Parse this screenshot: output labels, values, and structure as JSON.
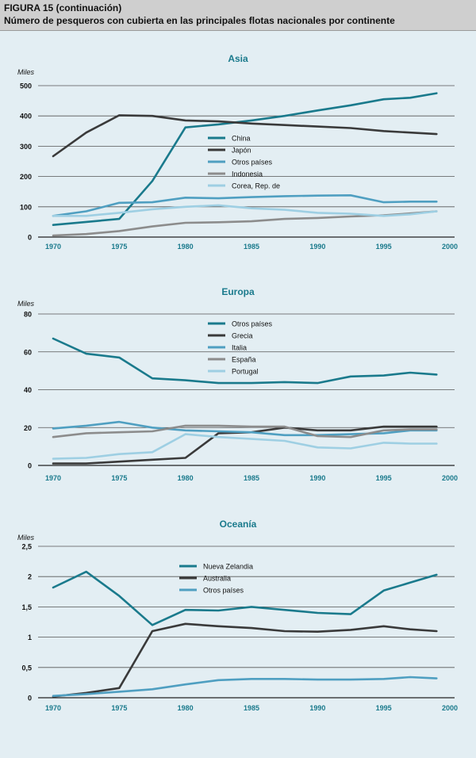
{
  "header": {
    "figure": "FIGURA 15 (continuación)",
    "title": "Número de pesqueros con cubierta en las principales flotas nacionales por continente"
  },
  "colors": {
    "teal": "#1a7a8c",
    "dark": "#3a3a3a",
    "blue": "#4f9fc1",
    "gray": "#8c8c8c",
    "light": "#9ecfe3",
    "axis": "#1a7a8c",
    "background": "#e3eef3"
  },
  "chart_data": [
    {
      "type": "line",
      "title": "Asia",
      "ylabel": "Miles",
      "ylim": [
        0,
        500
      ],
      "yticks": [
        0,
        100,
        200,
        300,
        400,
        500
      ],
      "ytick_labels": [
        "0",
        "100",
        "200",
        "300",
        "400",
        "500"
      ],
      "xlim": [
        1970,
        2000
      ],
      "xticks": [
        1970,
        1975,
        1980,
        1985,
        1990,
        1995,
        2000
      ],
      "xtick_labels": [
        "1970",
        "1975",
        "1980",
        "1985",
        "1990",
        "1995",
        "2000"
      ],
      "series": [
        {
          "name": "China",
          "color": "teal",
          "points": [
            [
              1970,
              40
            ],
            [
              1972.5,
              50
            ],
            [
              1975,
              60
            ],
            [
              1977.5,
              185
            ],
            [
              1980,
              362
            ],
            [
              1982.5,
              372
            ],
            [
              1985,
              385
            ],
            [
              1987.5,
              400
            ],
            [
              1990,
              418
            ],
            [
              1992.5,
              435
            ],
            [
              1995,
              455
            ],
            [
              1997,
              460
            ],
            [
              1999,
              475
            ]
          ]
        },
        {
          "name": "Japón",
          "color": "dark",
          "points": [
            [
              1970,
              267
            ],
            [
              1972.5,
              345
            ],
            [
              1975,
              402
            ],
            [
              1977.5,
              400
            ],
            [
              1980,
              385
            ],
            [
              1982.5,
              382
            ],
            [
              1985,
              375
            ],
            [
              1987.5,
              370
            ],
            [
              1990,
              365
            ],
            [
              1992.5,
              360
            ],
            [
              1995,
              350
            ],
            [
              1997,
              345
            ],
            [
              1999,
              340
            ]
          ]
        },
        {
          "name": "Otros países",
          "color": "blue",
          "points": [
            [
              1970,
              70
            ],
            [
              1972.5,
              85
            ],
            [
              1975,
              113
            ],
            [
              1977.5,
              115
            ],
            [
              1980,
              130
            ],
            [
              1982.5,
              128
            ],
            [
              1985,
              132
            ],
            [
              1987.5,
              135
            ],
            [
              1990,
              137
            ],
            [
              1992.5,
              138
            ],
            [
              1995,
              115
            ],
            [
              1997,
              117
            ],
            [
              1999,
              117
            ]
          ]
        },
        {
          "name": "Indonesia",
          "color": "gray",
          "points": [
            [
              1970,
              5
            ],
            [
              1972.5,
              10
            ],
            [
              1975,
              20
            ],
            [
              1977.5,
              35
            ],
            [
              1980,
              47
            ],
            [
              1982.5,
              49
            ],
            [
              1985,
              52
            ],
            [
              1987.5,
              60
            ],
            [
              1990,
              63
            ],
            [
              1992.5,
              68
            ],
            [
              1995,
              72
            ],
            [
              1997,
              78
            ],
            [
              1999,
              85
            ]
          ]
        },
        {
          "name": "Corea, Rep. de",
          "color": "light",
          "points": [
            [
              1970,
              70
            ],
            [
              1972.5,
              70
            ],
            [
              1975,
              80
            ],
            [
              1977.5,
              92
            ],
            [
              1980,
              100
            ],
            [
              1982.5,
              105
            ],
            [
              1985,
              95
            ],
            [
              1987.5,
              90
            ],
            [
              1990,
              80
            ],
            [
              1992.5,
              77
            ],
            [
              1995,
              70
            ],
            [
              1997,
              75
            ],
            [
              1999,
              85
            ]
          ]
        }
      ]
    },
    {
      "type": "line",
      "title": "Europa",
      "ylabel": "Miles",
      "ylim": [
        0,
        80
      ],
      "yticks": [
        0,
        20,
        40,
        60,
        80
      ],
      "ytick_labels": [
        "0",
        "20",
        "40",
        "60",
        "80"
      ],
      "xlim": [
        1970,
        2000
      ],
      "xticks": [
        1970,
        1975,
        1980,
        1985,
        1990,
        1995,
        2000
      ],
      "xtick_labels": [
        "1970",
        "1975",
        "1980",
        "1985",
        "1990",
        "1995",
        "2000"
      ],
      "series": [
        {
          "name": "Otros países",
          "color": "teal",
          "points": [
            [
              1970,
              67
            ],
            [
              1972.5,
              59
            ],
            [
              1975,
              57
            ],
            [
              1977.5,
              46
            ],
            [
              1980,
              45
            ],
            [
              1982.5,
              43.5
            ],
            [
              1985,
              43.5
            ],
            [
              1987.5,
              44
            ],
            [
              1990,
              43.5
            ],
            [
              1992.5,
              47
            ],
            [
              1995,
              47.5
            ],
            [
              1997,
              49
            ],
            [
              1999,
              48
            ]
          ]
        },
        {
          "name": "Grecia",
          "color": "dark",
          "points": [
            [
              1970,
              1
            ],
            [
              1972.5,
              1
            ],
            [
              1975,
              2
            ],
            [
              1977.5,
              3
            ],
            [
              1980,
              4
            ],
            [
              1982.5,
              17
            ],
            [
              1985,
              17.5
            ],
            [
              1987.5,
              20
            ],
            [
              1990,
              18.5
            ],
            [
              1992.5,
              18.5
            ],
            [
              1995,
              20.5
            ],
            [
              1997,
              20.5
            ],
            [
              1999,
              20.5
            ]
          ]
        },
        {
          "name": "Italia",
          "color": "blue",
          "points": [
            [
              1970,
              19.5
            ],
            [
              1972.5,
              21
            ],
            [
              1975,
              23
            ],
            [
              1977.5,
              20
            ],
            [
              1980,
              18.5
            ],
            [
              1982.5,
              18
            ],
            [
              1985,
              17.5
            ],
            [
              1987.5,
              16
            ],
            [
              1990,
              16
            ],
            [
              1992.5,
              16.5
            ],
            [
              1995,
              17
            ],
            [
              1997,
              18.5
            ],
            [
              1999,
              18.5
            ]
          ]
        },
        {
          "name": "España",
          "color": "gray",
          "points": [
            [
              1970,
              15
            ],
            [
              1972.5,
              17
            ],
            [
              1975,
              17.5
            ],
            [
              1977.5,
              18
            ],
            [
              1980,
              21
            ],
            [
              1982.5,
              21
            ],
            [
              1985,
              20.5
            ],
            [
              1987.5,
              20.5
            ],
            [
              1990,
              15.5
            ],
            [
              1992.5,
              15
            ],
            [
              1995,
              18.5
            ],
            [
              1997,
              19
            ],
            [
              1999,
              19
            ]
          ]
        },
        {
          "name": "Portugal",
          "color": "light",
          "points": [
            [
              1970,
              3.5
            ],
            [
              1972.5,
              4
            ],
            [
              1975,
              6
            ],
            [
              1977.5,
              7
            ],
            [
              1980,
              16.5
            ],
            [
              1982.5,
              15
            ],
            [
              1985,
              14
            ],
            [
              1987.5,
              13
            ],
            [
              1990,
              9.5
            ],
            [
              1992.5,
              9
            ],
            [
              1995,
              12
            ],
            [
              1997,
              11.5
            ],
            [
              1999,
              11.5
            ]
          ]
        }
      ]
    },
    {
      "type": "line",
      "title": "Oceanía",
      "ylabel": "Miles",
      "ylim": [
        0,
        2.5
      ],
      "yticks": [
        0,
        0.5,
        1,
        1.5,
        2,
        2.5
      ],
      "ytick_labels": [
        "0",
        "0,5",
        "1",
        "1,5",
        "2",
        "2,5"
      ],
      "xlim": [
        1970,
        2000
      ],
      "xticks": [
        1970,
        1975,
        1980,
        1985,
        1990,
        1995,
        2000
      ],
      "xtick_labels": [
        "1970",
        "1975",
        "1980",
        "1985",
        "1990",
        "1995",
        "2000"
      ],
      "series": [
        {
          "name": "Nueva Zelandia",
          "color": "teal",
          "points": [
            [
              1970,
              1.82
            ],
            [
              1972.5,
              2.08
            ],
            [
              1975,
              1.68
            ],
            [
              1977.5,
              1.2
            ],
            [
              1980,
              1.45
            ],
            [
              1982.5,
              1.44
            ],
            [
              1985,
              1.5
            ],
            [
              1987.5,
              1.45
            ],
            [
              1990,
              1.4
            ],
            [
              1992.5,
              1.38
            ],
            [
              1995,
              1.77
            ],
            [
              1997,
              1.9
            ],
            [
              1999,
              2.03
            ]
          ]
        },
        {
          "name": "Australia",
          "color": "dark",
          "points": [
            [
              1970,
              0.02
            ],
            [
              1972.5,
              0.08
            ],
            [
              1975,
              0.16
            ],
            [
              1977.5,
              1.1
            ],
            [
              1980,
              1.22
            ],
            [
              1982.5,
              1.18
            ],
            [
              1985,
              1.15
            ],
            [
              1987.5,
              1.1
            ],
            [
              1990,
              1.09
            ],
            [
              1992.5,
              1.12
            ],
            [
              1995,
              1.18
            ],
            [
              1997,
              1.13
            ],
            [
              1999,
              1.1
            ]
          ]
        },
        {
          "name": "Otros países",
          "color": "blue",
          "points": [
            [
              1970,
              0.03
            ],
            [
              1972.5,
              0.06
            ],
            [
              1975,
              0.1
            ],
            [
              1977.5,
              0.14
            ],
            [
              1980,
              0.22
            ],
            [
              1982.5,
              0.29
            ],
            [
              1985,
              0.31
            ],
            [
              1987.5,
              0.31
            ],
            [
              1990,
              0.3
            ],
            [
              1992.5,
              0.3
            ],
            [
              1995,
              0.31
            ],
            [
              1997,
              0.34
            ],
            [
              1999,
              0.32
            ]
          ]
        }
      ]
    }
  ]
}
